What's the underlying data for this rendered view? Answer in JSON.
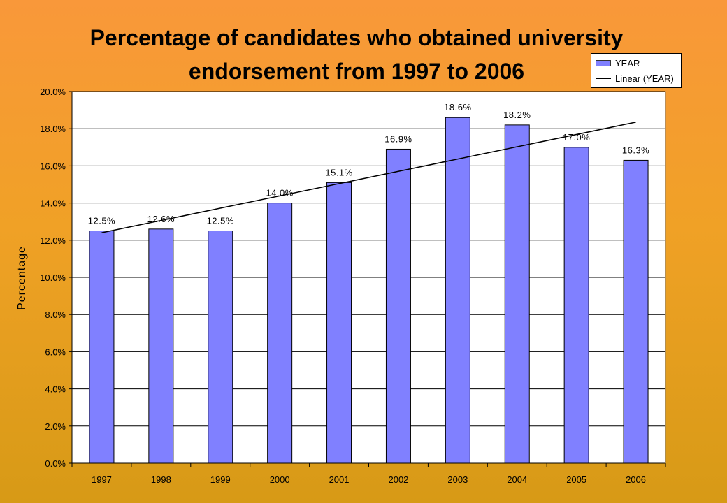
{
  "chart_data": {
    "type": "bar",
    "title": "Percentage of candidates who obtained university endorsement from 1997 to 2006",
    "categories": [
      "1997",
      "1998",
      "1999",
      "2000",
      "2001",
      "2002",
      "2003",
      "2004",
      "2005",
      "2006"
    ],
    "series": [
      {
        "name": "YEAR",
        "values": [
          12.5,
          12.6,
          12.5,
          14.0,
          15.1,
          16.9,
          18.6,
          18.2,
          17.0,
          16.3
        ],
        "data_labels": [
          "12.5%",
          "12.6%",
          "12.5%",
          "14.0%",
          "15.1%",
          "16.9%",
          "18.6%",
          "18.2%",
          "17.0%",
          "16.3%"
        ],
        "color": "#8080ff"
      }
    ],
    "trendline": {
      "name": "Linear (YEAR)",
      "type": "linear",
      "start": 12.4,
      "end": 18.35,
      "color": "#000000"
    },
    "xlabel": "",
    "ylabel": "Percentage",
    "ylim": [
      0,
      20
    ],
    "yticks": [
      0,
      2,
      4,
      6,
      8,
      10,
      12,
      14,
      16,
      18,
      20
    ],
    "ytick_labels": [
      "0.0%",
      "2.0%",
      "4.0%",
      "6.0%",
      "8.0%",
      "10.0%",
      "12.0%",
      "14.0%",
      "16.0%",
      "18.0%",
      "20.0%"
    ],
    "grid": true,
    "legend_position": "top-right",
    "colors": {
      "bar": "#8080ff",
      "plot_bg": "#ffffff",
      "grid": "#000000"
    }
  }
}
